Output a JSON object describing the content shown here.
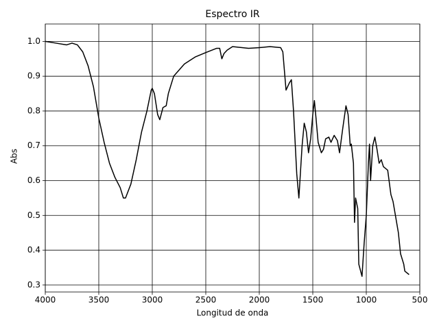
{
  "chart_data": {
    "type": "line",
    "title": "Espectro IR",
    "x_label": "Longitud de onda",
    "y_label": "Abs",
    "x": [
      4000,
      3900,
      3800,
      3750,
      3700,
      3650,
      3600,
      3550,
      3500,
      3450,
      3400,
      3350,
      3300,
      3270,
      3250,
      3200,
      3150,
      3100,
      3050,
      3010,
      3000,
      2980,
      2950,
      2930,
      2900,
      2870,
      2850,
      2800,
      2700,
      2600,
      2500,
      2400,
      2370,
      2350,
      2330,
      2300,
      2250,
      2100,
      2000,
      1900,
      1800,
      1780,
      1750,
      1720,
      1700,
      1680,
      1650,
      1630,
      1600,
      1580,
      1560,
      1540,
      1520,
      1500,
      1485,
      1470,
      1450,
      1420,
      1400,
      1380,
      1350,
      1330,
      1300,
      1270,
      1250,
      1220,
      1190,
      1170,
      1150,
      1140,
      1120,
      1110,
      1100,
      1080,
      1070,
      1040,
      1020,
      1000,
      980,
      970,
      960,
      940,
      920,
      900,
      880,
      860,
      840,
      800,
      770,
      750,
      700,
      680,
      650,
      640,
      600
    ],
    "values": [
      1.0,
      0.995,
      0.99,
      0.995,
      0.99,
      0.97,
      0.93,
      0.87,
      0.78,
      0.71,
      0.65,
      0.61,
      0.58,
      0.55,
      0.55,
      0.59,
      0.66,
      0.74,
      0.8,
      0.86,
      0.865,
      0.85,
      0.79,
      0.775,
      0.81,
      0.815,
      0.85,
      0.9,
      0.935,
      0.955,
      0.968,
      0.98,
      0.98,
      0.95,
      0.965,
      0.975,
      0.985,
      0.98,
      0.982,
      0.985,
      0.982,
      0.97,
      0.86,
      0.88,
      0.89,
      0.8,
      0.62,
      0.55,
      0.7,
      0.765,
      0.74,
      0.68,
      0.72,
      0.79,
      0.83,
      0.78,
      0.71,
      0.68,
      0.69,
      0.72,
      0.725,
      0.71,
      0.73,
      0.715,
      0.68,
      0.75,
      0.815,
      0.79,
      0.7,
      0.705,
      0.65,
      0.48,
      0.55,
      0.52,
      0.36,
      0.325,
      0.42,
      0.5,
      0.65,
      0.705,
      0.6,
      0.7,
      0.725,
      0.69,
      0.65,
      0.66,
      0.64,
      0.63,
      0.56,
      0.54,
      0.45,
      0.39,
      0.36,
      0.34,
      0.33
    ],
    "color": "#000000",
    "xlim": [
      4000,
      500
    ],
    "xticks": [
      4000,
      3500,
      3000,
      2500,
      2000,
      1500,
      1000,
      500
    ],
    "ylim": [
      0.28,
      1.05
    ],
    "yticks": [
      0.3,
      0.4,
      0.5,
      0.6,
      0.7,
      0.8,
      0.9,
      {
        "value": 1.0,
        "label": "1.0"
      }
    ],
    "grid": true
  }
}
